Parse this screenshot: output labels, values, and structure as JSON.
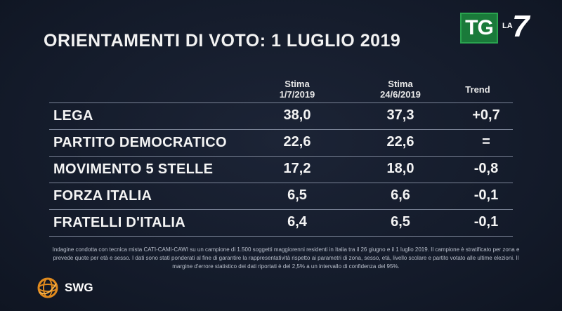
{
  "title": "ORIENTAMENTI DI VOTO: 1 LUGLIO 2019",
  "logo": {
    "tg": "TG",
    "la": "LA",
    "seven": "7"
  },
  "chart_data": {
    "type": "table",
    "columns": [
      {
        "line1": "Stima",
        "line2": "1/7/2019"
      },
      {
        "line1": "Stima",
        "line2": "24/6/2019"
      },
      {
        "line1": "Trend",
        "line2": ""
      }
    ],
    "rows": [
      {
        "party": "LEGA",
        "stima_1_7": "38,0",
        "stima_24_6": "37,3",
        "trend": "+0,7"
      },
      {
        "party": "PARTITO DEMOCRATICO",
        "stima_1_7": "22,6",
        "stima_24_6": "22,6",
        "trend": "="
      },
      {
        "party": "MOVIMENTO 5 STELLE",
        "stima_1_7": "17,2",
        "stima_24_6": "18,0",
        "trend": "-0,8"
      },
      {
        "party": "FORZA ITALIA",
        "stima_1_7": "6,5",
        "stima_24_6": "6,6",
        "trend": "-0,1"
      },
      {
        "party": "FRATELLI D'ITALIA",
        "stima_1_7": "6,4",
        "stima_24_6": "6,5",
        "trend": "-0,1"
      }
    ]
  },
  "note": "Indagine condotta con tecnica mista CATI-CAMI-CAWI su un campione di 1.500 soggetti maggiorenni residenti in Italia tra il 26 giugno e il 1 luglio 2019. Il campione è stratificato per zona e prevede quote per età e sesso. I dati sono stati ponderati al fine di garantire la rappresentatività rispetto ai parametri di zona, sesso, età, livello scolare e partito votato alle ultime elezioni. Il margine d'errore statistico dei dati riportati è del 2,5% a un intervallo di confidenza del 95%.",
  "source": "SWG",
  "colors": {
    "background": "#141b2b",
    "tg_green": "#1a7a3a",
    "text": "#f4f4f4",
    "rule": "#7a8396",
    "globe": "#e08a1e"
  }
}
